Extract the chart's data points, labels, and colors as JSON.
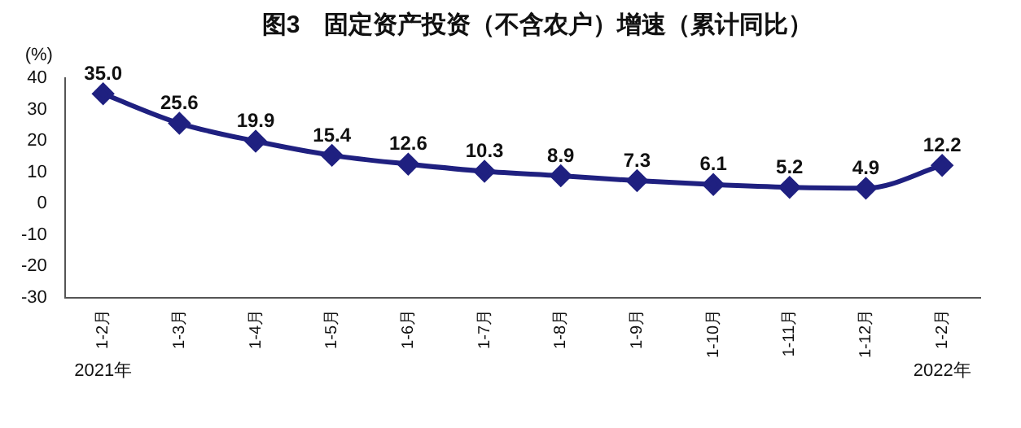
{
  "chart_data": {
    "type": "line",
    "title": "图3　固定资产投资（不含农户）增速（累计同比）",
    "ylabel": "(%)",
    "categories": [
      "1-2月",
      "1-3月",
      "1-4月",
      "1-5月",
      "1-6月",
      "1-7月",
      "1-8月",
      "1-9月",
      "1-10月",
      "1-11月",
      "1-12月",
      "1-2月"
    ],
    "series": [
      {
        "color": "#1f2080",
        "values": [
          35.0,
          25.6,
          19.9,
          15.4,
          12.6,
          10.3,
          8.9,
          7.3,
          6.1,
          5.2,
          4.9,
          12.2
        ],
        "value_labels": [
          "35.0",
          "25.6",
          "19.9",
          "15.4",
          "12.6",
          "10.3",
          "8.9",
          "7.3",
          "6.1",
          "5.2",
          "4.9",
          "12.2"
        ]
      }
    ],
    "ylim": [
      -30,
      40
    ],
    "yticks": [
      -30,
      -20,
      -10,
      0,
      10,
      20,
      30,
      40
    ],
    "grid": false,
    "legend": false,
    "marker": "diamond",
    "line_style": "solid",
    "annotations": [
      "2021年",
      "2022年"
    ]
  }
}
